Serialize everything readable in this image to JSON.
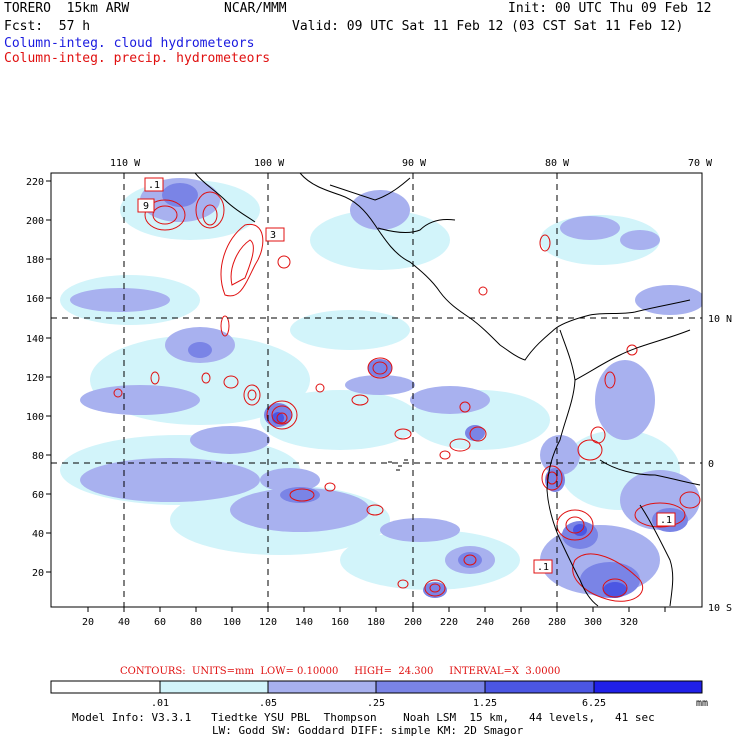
{
  "header": {
    "model": "TORERO  15km ARW",
    "org": "NCAR/MMM",
    "init": "Init: 00 UTC Thu 09 Feb 12",
    "fcst": "Fcst:  57 h",
    "valid": "Valid: 09 UTC Sat 11 Feb 12 (03 CST Sat 11 Feb 12)",
    "legend_cloud": "Column-integ. cloud hydrometeors",
    "legend_precip": "Column-integ. precip. hydrometeors"
  },
  "map": {
    "top_lon_labels": [
      "110 W",
      "100 W",
      "90 W",
      "80 W",
      "70 W"
    ],
    "right_lat_labels": [
      "10 N",
      "0",
      "10 S"
    ],
    "y_grid_labels": [
      "220",
      "200",
      "180",
      "160",
      "140",
      "120",
      "100",
      "80",
      "60",
      "40",
      "20"
    ],
    "x_grid_labels": [
      "20",
      "40",
      "60",
      "80",
      "100",
      "120",
      "140",
      "160",
      "180",
      "200",
      "220",
      "240",
      "260",
      "280",
      "300",
      "320"
    ],
    "contour_labels": [
      ".1",
      "9",
      "3",
      ".1",
      ".1"
    ]
  },
  "contours_info": {
    "label": "CONTOURS:  UNITS=mm  LOW= 0.10000     HIGH=  24.300     INTERVAL=X  3.0000"
  },
  "colorbar": {
    "tick_labels": [
      ".01",
      ".05",
      ".25",
      "1.25",
      "6.25"
    ],
    "unit": "mm",
    "colors": [
      "#ffffff",
      "#d2f4fa",
      "#a8b1ef",
      "#7a84e6",
      "#4b56e3",
      "#2020e8"
    ]
  },
  "model_info": {
    "line1": "Model Info: V3.3.1   Tiedtke YSU PBL  Thompson    Noah LSM  15 km,   44 levels,   41 sec",
    "line2": "LW: Godd SW: Goddard DIFF: simple KM: 2D Smagor"
  }
}
